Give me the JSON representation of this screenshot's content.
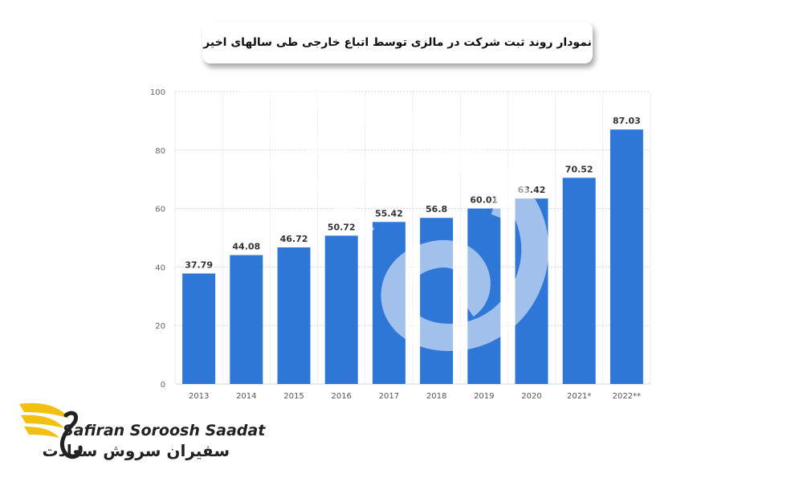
{
  "title": "نمودار روند ثبت شرکت در مالزی توسط اتباع خارجی طی سالهای اخیر",
  "brand": {
    "name_en": "Safiran Soroosh Saadat",
    "name_fa": "سفیران سروش سعادت",
    "colors": {
      "wing": "#f2c011",
      "text": "#222222"
    }
  },
  "chart_data": {
    "type": "bar",
    "categories": [
      "2013",
      "2014",
      "2015",
      "2016",
      "2017",
      "2018",
      "2019",
      "2020",
      "2021*",
      "2022**"
    ],
    "values": [
      37.79,
      44.08,
      46.72,
      50.72,
      55.42,
      56.8,
      60.01,
      63.42,
      70.52,
      87.03
    ],
    "value_labels": [
      "37.79",
      "44.08",
      "46.72",
      "50.72",
      "55.42",
      "56.8",
      "60.01",
      "63.42",
      "70.52",
      "87.03"
    ],
    "ylim": [
      0,
      100
    ],
    "yticks": [
      0,
      20,
      40,
      60,
      80,
      100
    ],
    "grid": true,
    "bar_color": "#2f77d6",
    "title": "",
    "xlabel": "",
    "ylabel": ""
  }
}
